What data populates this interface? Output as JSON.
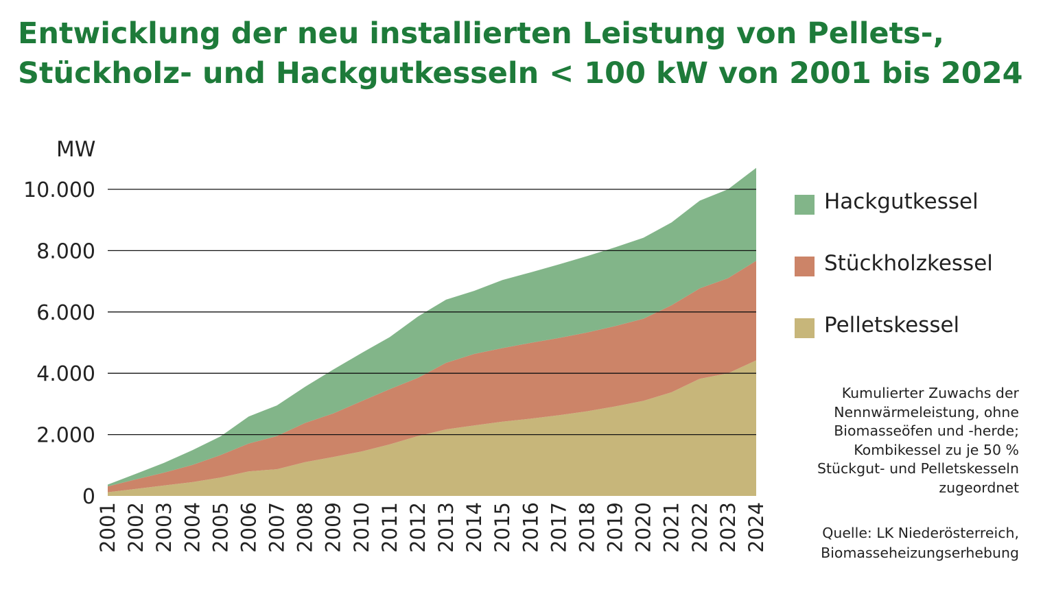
{
  "title_lines": [
    "Entwicklung der neu installierten Leistung von Pellets-,",
    "Stückholz- und Hackgutkesseln < 100 kW von 2001 bis 2024"
  ],
  "note_lines": [
    "Kumulierter Zuwachs der",
    "Nennwärmeleistung, ohne",
    "Biomasseöfen und -herde;",
    "Kombikessel zu je 50 %",
    "Stückgut- und Pelletskesseln",
    "zugeordnet"
  ],
  "source_lines": [
    "Quelle: LK Niederösterreich,",
    "Biomasseheizungserhebung"
  ],
  "legend": [
    {
      "label": "Hackgutkessel",
      "color": "#82b589"
    },
    {
      "label": "Stückholzkessel",
      "color": "#cc8468"
    },
    {
      "label": "Pelletskessel",
      "color": "#c7b67a"
    }
  ],
  "chart_data": {
    "type": "area",
    "stacked": true,
    "ylabel": "MW",
    "ylim": [
      0,
      10000
    ],
    "yticks": [
      0,
      2000,
      4000,
      6000,
      8000,
      10000
    ],
    "ytick_labels": [
      "0",
      "2.000",
      "4.000",
      "6.000",
      "8.000",
      "10.000"
    ],
    "grid": true,
    "legend_position": "right",
    "x": [
      "2001",
      "2002",
      "2003",
      "2004",
      "2005",
      "2006",
      "2007",
      "2008",
      "2009",
      "2010",
      "2011",
      "2012",
      "2013",
      "2014",
      "2015",
      "2016",
      "2017",
      "2018",
      "2019",
      "2020",
      "2021",
      "2022",
      "2023",
      "2024"
    ],
    "series": [
      {
        "name": "Pelletskessel",
        "color": "#c7b67a",
        "values": [
          120,
          230,
          340,
          450,
          600,
          800,
          870,
          1100,
          1270,
          1450,
          1680,
          1950,
          2170,
          2300,
          2420,
          2520,
          2630,
          2760,
          2920,
          3100,
          3380,
          3820,
          4000,
          4420
        ]
      },
      {
        "name": "Stückholzkessel",
        "color": "#cc8468",
        "values": [
          190,
          310,
          420,
          560,
          730,
          910,
          1080,
          1280,
          1420,
          1640,
          1800,
          1900,
          2170,
          2330,
          2400,
          2470,
          2520,
          2570,
          2620,
          2680,
          2840,
          2950,
          3100,
          3250
        ]
      },
      {
        "name": "Hackgutkessel",
        "color": "#82b589",
        "values": [
          60,
          180,
          320,
          480,
          610,
          880,
          1000,
          1180,
          1430,
          1570,
          1700,
          2000,
          2060,
          2060,
          2220,
          2300,
          2400,
          2490,
          2570,
          2640,
          2700,
          2860,
          2900,
          3030
        ]
      }
    ]
  }
}
